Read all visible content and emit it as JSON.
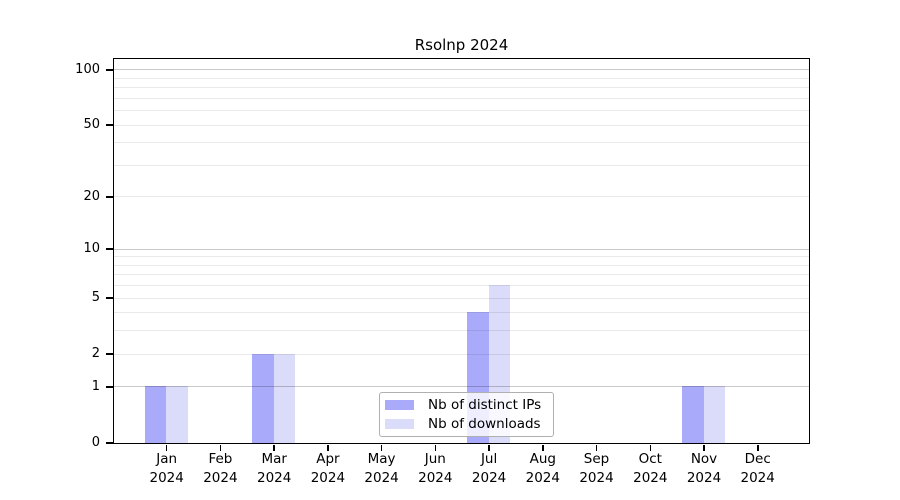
{
  "title": "Rsolnp 2024",
  "chart_data": {
    "type": "bar",
    "title": "Rsolnp 2024",
    "categories": [
      "Jan 2024",
      "Feb 2024",
      "Mar 2024",
      "Apr 2024",
      "May 2024",
      "Jun 2024",
      "Jul 2024",
      "Aug 2024",
      "Sep 2024",
      "Oct 2024",
      "Nov 2024",
      "Dec 2024"
    ],
    "series": [
      {
        "name": "Nb of distinct IPs",
        "color": "#aaaafa",
        "values": [
          1,
          0,
          2,
          0,
          0,
          0,
          4,
          0,
          0,
          0,
          1,
          0
        ]
      },
      {
        "name": "Nb of downloads",
        "color": "#dbdbfa",
        "values": [
          1,
          0,
          2,
          0,
          0,
          0,
          6,
          0,
          0,
          0,
          1,
          0
        ]
      }
    ],
    "xlabel": "",
    "ylabel": "",
    "yscale": "log1p",
    "ylim": [
      0,
      116
    ],
    "yticks": [
      0,
      1,
      2,
      5,
      10,
      20,
      50,
      100
    ],
    "major_gridlines": [
      1,
      10,
      100
    ],
    "minor_gridlines": [
      2,
      3,
      4,
      5,
      6,
      7,
      8,
      9,
      20,
      30,
      40,
      50,
      60,
      70,
      80,
      90
    ],
    "grid": true,
    "legend_position": "bottom-center-inside",
    "colors": {
      "grid_major": "#c9c9c9",
      "grid_minor": "#e9e9e9",
      "frame": "#000000",
      "background": "#ffffff"
    }
  }
}
